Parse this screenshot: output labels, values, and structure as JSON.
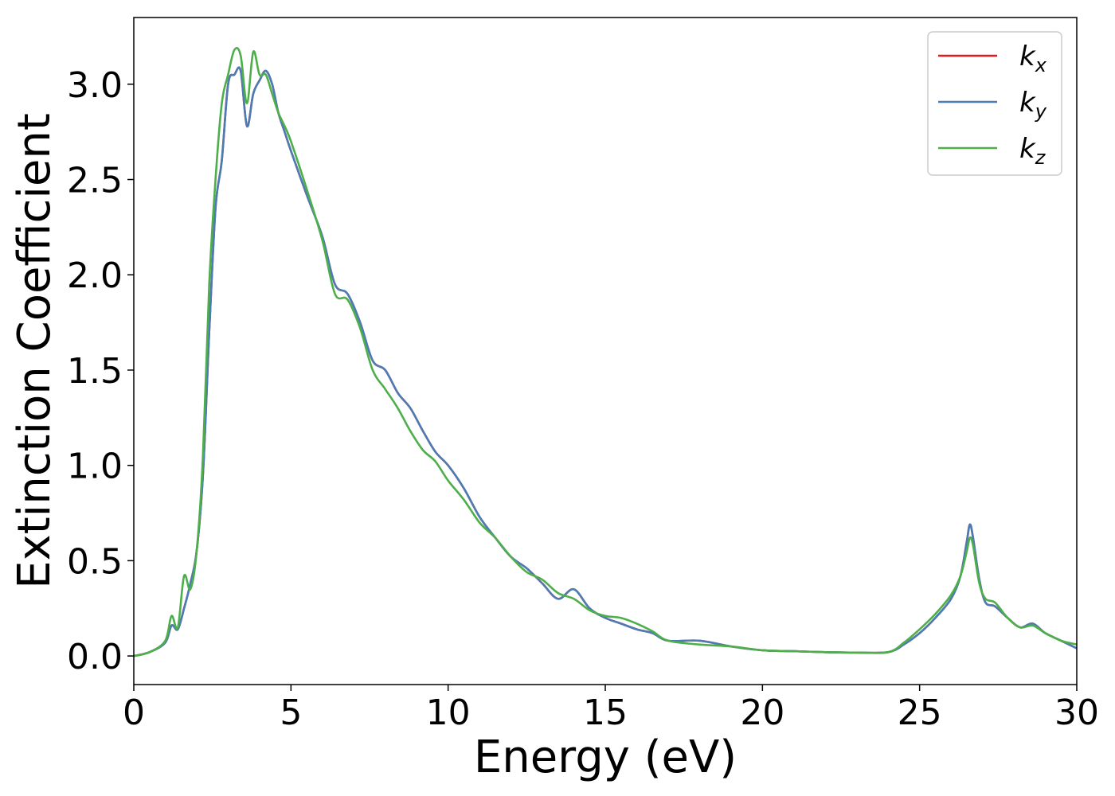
{
  "chart_data": {
    "type": "line",
    "title": "",
    "xlabel": "Energy (eV)",
    "ylabel": "Extinction Coefficient",
    "xlim": [
      0,
      30
    ],
    "ylim": [
      -0.15,
      3.35
    ],
    "xticks": [
      0,
      5,
      10,
      15,
      20,
      25,
      30
    ],
    "xtick_labels": [
      "0",
      "5",
      "10",
      "15",
      "20",
      "25",
      "30"
    ],
    "yticks": [
      0.0,
      0.5,
      1.0,
      1.5,
      2.0,
      2.5,
      3.0
    ],
    "ytick_labels": [
      "0.0",
      "0.5",
      "1.0",
      "1.5",
      "2.0",
      "2.5",
      "3.0"
    ],
    "grid": false,
    "legend_position": "top-right",
    "x": [
      0,
      0.5,
      1.0,
      1.2,
      1.4,
      1.6,
      1.8,
      2.0,
      2.2,
      2.4,
      2.6,
      2.8,
      3.0,
      3.2,
      3.4,
      3.6,
      3.8,
      4.0,
      4.2,
      4.4,
      4.6,
      4.8,
      5.0,
      5.5,
      6.0,
      6.4,
      6.8,
      7.2,
      7.6,
      8.0,
      8.4,
      8.8,
      9.2,
      9.6,
      10.0,
      10.5,
      11.0,
      11.5,
      12.0,
      12.5,
      13.0,
      13.5,
      14.0,
      14.5,
      15.0,
      15.5,
      16.0,
      16.5,
      17.0,
      18.0,
      19.0,
      20.0,
      21.0,
      22.0,
      23.0,
      24.0,
      24.5,
      25.0,
      25.5,
      26.0,
      26.3,
      26.5,
      26.6,
      26.7,
      26.9,
      27.1,
      27.4,
      27.8,
      28.2,
      28.6,
      29.0,
      29.5,
      30.0
    ],
    "series": [
      {
        "name_base": "k",
        "name_sub": "x",
        "color": "#e41a1c",
        "values": [
          0.0,
          0.02,
          0.07,
          0.16,
          0.14,
          0.25,
          0.38,
          0.55,
          0.95,
          1.7,
          2.35,
          2.6,
          3.0,
          3.05,
          3.07,
          2.78,
          2.95,
          3.02,
          3.07,
          3.0,
          2.85,
          2.75,
          2.65,
          2.42,
          2.2,
          1.95,
          1.9,
          1.75,
          1.55,
          1.5,
          1.38,
          1.3,
          1.18,
          1.07,
          1.0,
          0.88,
          0.73,
          0.62,
          0.52,
          0.46,
          0.38,
          0.3,
          0.35,
          0.25,
          0.2,
          0.17,
          0.14,
          0.12,
          0.08,
          0.08,
          0.05,
          0.03,
          0.025,
          0.02,
          0.018,
          0.02,
          0.06,
          0.12,
          0.2,
          0.3,
          0.42,
          0.6,
          0.69,
          0.62,
          0.4,
          0.28,
          0.26,
          0.2,
          0.15,
          0.17,
          0.12,
          0.08,
          0.04
        ]
      },
      {
        "name_base": "k",
        "name_sub": "y",
        "color": "#4a7db5",
        "values": [
          0.0,
          0.02,
          0.07,
          0.16,
          0.14,
          0.25,
          0.38,
          0.55,
          0.95,
          1.7,
          2.35,
          2.6,
          3.0,
          3.05,
          3.07,
          2.78,
          2.95,
          3.02,
          3.07,
          3.0,
          2.85,
          2.75,
          2.65,
          2.42,
          2.2,
          1.95,
          1.9,
          1.75,
          1.55,
          1.5,
          1.38,
          1.3,
          1.18,
          1.07,
          1.0,
          0.88,
          0.73,
          0.62,
          0.52,
          0.46,
          0.38,
          0.3,
          0.35,
          0.25,
          0.2,
          0.17,
          0.14,
          0.12,
          0.08,
          0.08,
          0.05,
          0.03,
          0.025,
          0.02,
          0.018,
          0.02,
          0.06,
          0.12,
          0.2,
          0.3,
          0.42,
          0.6,
          0.69,
          0.62,
          0.4,
          0.28,
          0.26,
          0.2,
          0.15,
          0.17,
          0.12,
          0.08,
          0.04
        ]
      },
      {
        "name_base": "k",
        "name_sub": "z",
        "color": "#4daf4a",
        "values": [
          0.0,
          0.02,
          0.08,
          0.21,
          0.15,
          0.42,
          0.35,
          0.55,
          1.05,
          1.95,
          2.5,
          2.9,
          3.05,
          3.18,
          3.15,
          2.9,
          3.17,
          3.05,
          3.05,
          2.95,
          2.85,
          2.78,
          2.7,
          2.45,
          2.18,
          1.9,
          1.87,
          1.72,
          1.5,
          1.4,
          1.3,
          1.18,
          1.08,
          1.02,
          0.92,
          0.82,
          0.7,
          0.62,
          0.52,
          0.44,
          0.4,
          0.33,
          0.3,
          0.24,
          0.21,
          0.2,
          0.17,
          0.13,
          0.08,
          0.06,
          0.05,
          0.03,
          0.025,
          0.02,
          0.018,
          0.02,
          0.07,
          0.14,
          0.22,
          0.32,
          0.42,
          0.55,
          0.62,
          0.58,
          0.38,
          0.3,
          0.28,
          0.2,
          0.15,
          0.16,
          0.12,
          0.08,
          0.06
        ]
      }
    ]
  }
}
